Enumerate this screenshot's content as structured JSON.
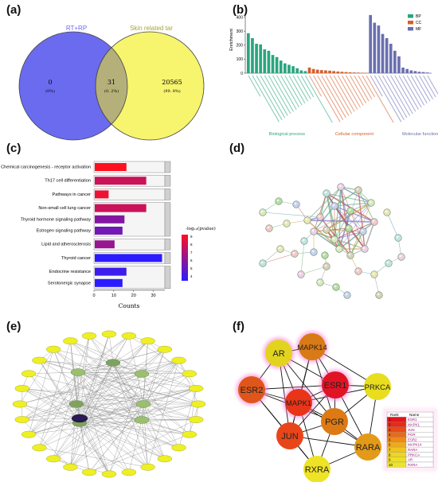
{
  "panel_labels": {
    "a": "(a)",
    "b": "(b)",
    "c": "(c)",
    "d": "(d)",
    "e": "(e)",
    "f": "(f)"
  },
  "venn": {
    "left_title": "RT+RP",
    "right_title": "Skin related tar",
    "left_only": {
      "count": "0",
      "pct": "(0%)"
    },
    "overlap": {
      "count": "31",
      "pct": "(0. 2%)"
    },
    "right_only": {
      "count": "20565",
      "pct": "(99. 8%)"
    },
    "colors": {
      "left": "#6b6bf0",
      "right": "#f7f46e",
      "overlap": "#b5b07a"
    }
  },
  "chart_data": [
    {
      "type": "bar",
      "panel": "b",
      "ylabel": "Enrichment",
      "ylim": [
        0,
        420
      ],
      "yticks": [
        0,
        100,
        200,
        300,
        400
      ],
      "legend": [
        "BP",
        "CC",
        "MF"
      ],
      "legend_position": "top-right",
      "colors": {
        "BP": "#2aa57f",
        "CC": "#d35f2b",
        "MF": "#6a6fb0"
      },
      "group_labels": [
        "Biological process",
        "Cellular component",
        "Molecular function"
      ],
      "series": [
        {
          "name": "BP",
          "values": [
            285,
            250,
            210,
            205,
            170,
            160,
            130,
            115,
            90,
            70,
            60,
            50,
            35,
            20,
            15
          ]
        },
        {
          "name": "CC",
          "values": [
            40,
            30,
            25,
            22,
            20,
            18,
            15,
            12,
            10,
            8,
            6,
            5,
            4,
            3,
            2
          ]
        },
        {
          "name": "MF",
          "values": [
            415,
            360,
            340,
            280,
            250,
            210,
            160,
            120,
            40,
            30,
            20,
            15,
            10,
            8,
            5
          ]
        }
      ]
    },
    {
      "type": "bar",
      "panel": "c",
      "orientation": "horizontal",
      "xlabel": "Counts",
      "xlim": [
        0,
        35
      ],
      "xticks": [
        0,
        10,
        20,
        30
      ],
      "categories": [
        "Chemical carcinogenesis - receptor activation",
        "Th17 cell differentiation",
        "Pathways in cancer",
        "Non-small cell lung cancer",
        "Thyroid hormone signaling pathway",
        "Estrogen signaling pathway",
        "Lipid and atherosclerosis",
        "Thyroid cancer",
        "Endocrine resistance",
        "Serotonergic synapse"
      ],
      "values": [
        16,
        26,
        7,
        26,
        15,
        14,
        10,
        34,
        16,
        14
      ],
      "neglog10_pvalue": [
        9,
        7.5,
        8.5,
        7.5,
        5.5,
        5,
        6,
        3,
        3.5,
        3
      ],
      "legend_title": "-log₁₀(pvalue)",
      "legend_ticks": [
        "9",
        "8",
        "7",
        "6",
        "5",
        "4"
      ],
      "color_low": "#2b1cff",
      "color_high": "#ff1020"
    }
  ],
  "network_f": {
    "nodes": [
      {
        "id": "AR",
        "color": "#e2d41e"
      },
      {
        "id": "MAPK14",
        "color": "#d87a16"
      },
      {
        "id": "ESR2",
        "color": "#e0561a"
      },
      {
        "id": "MAPK1",
        "color": "#e83418"
      },
      {
        "id": "ESR1",
        "color": "#e01424"
      },
      {
        "id": "PRKCA",
        "color": "#e8de1e"
      },
      {
        "id": "JUN",
        "color": "#e8461a"
      },
      {
        "id": "PGR",
        "color": "#dd7a14"
      },
      {
        "id": "RARA",
        "color": "#e39a18"
      },
      {
        "id": "RXRA",
        "color": "#eee324"
      }
    ],
    "table": {
      "headers": [
        "Rank",
        "Name"
      ],
      "rows": [
        [
          "1",
          "ESR1"
        ],
        [
          "2",
          "MAPK1"
        ],
        [
          "3",
          "JUN"
        ],
        [
          "4",
          "PGR"
        ],
        [
          "5",
          "ESR2"
        ],
        [
          "6",
          "MAPK14"
        ],
        [
          "7",
          "RARA"
        ],
        [
          "8",
          "PRKCA"
        ],
        [
          "9",
          "AR"
        ],
        [
          "10",
          "RXRA"
        ]
      ]
    }
  }
}
